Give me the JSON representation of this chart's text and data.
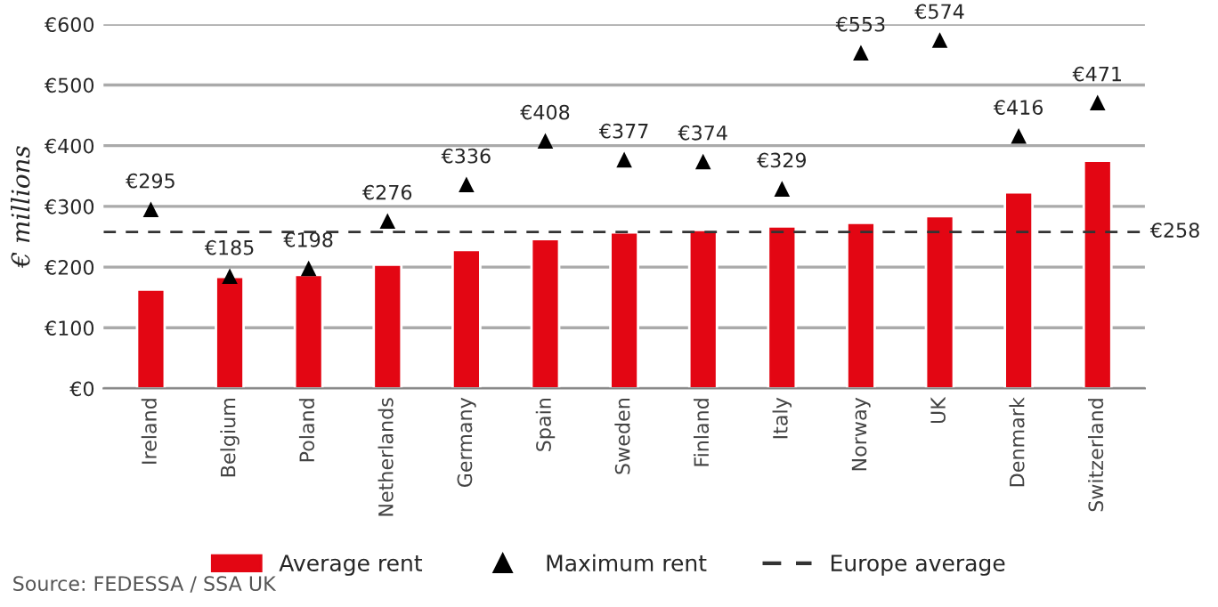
{
  "chart_data": {
    "type": "bar",
    "ylabel": "€ millions",
    "categories": [
      "Ireland",
      "Belgium",
      "Poland",
      "Netherlands",
      "Germany",
      "Spain",
      "Sweden",
      "Finland",
      "Italy",
      "Norway",
      "UK",
      "Denmark",
      "Switzerland"
    ],
    "series": [
      {
        "name": "Average rent",
        "color": "#e30613",
        "values": [
          163,
          184,
          187,
          204,
          228,
          246,
          257,
          261,
          267,
          273,
          284,
          323,
          375
        ]
      },
      {
        "name": "Maximum rent",
        "type": "scatter",
        "marker": "triangle",
        "color": "#000000",
        "values": [
          295,
          185,
          198,
          276,
          336,
          408,
          377,
          374,
          329,
          553,
          574,
          416,
          471
        ],
        "value_labels": [
          "€295",
          "€185",
          "€198",
          "€276",
          "€336",
          "€408",
          "€377",
          "€374",
          "€329",
          "€553",
          "€574",
          "€416",
          "€471"
        ]
      }
    ],
    "ref_lines": [
      {
        "axis": "y",
        "value": 258,
        "label": "Europe average",
        "color": "#333333",
        "line_style": "dashed"
      }
    ],
    "annotations": [
      "€258",
      "Source: FEDESSA / SSA UK"
    ],
    "ylim": [
      0,
      600
    ],
    "yticks": [
      {
        "value": 0,
        "label": "€0"
      },
      {
        "value": 100,
        "label": "€100"
      },
      {
        "value": 200,
        "label": "€200"
      },
      {
        "value": 300,
        "label": "€300"
      },
      {
        "value": 400,
        "label": "€400"
      },
      {
        "value": 500,
        "label": "€500"
      },
      {
        "value": 600,
        "label": "€600"
      }
    ],
    "grid": "y",
    "legend": "bottom"
  }
}
